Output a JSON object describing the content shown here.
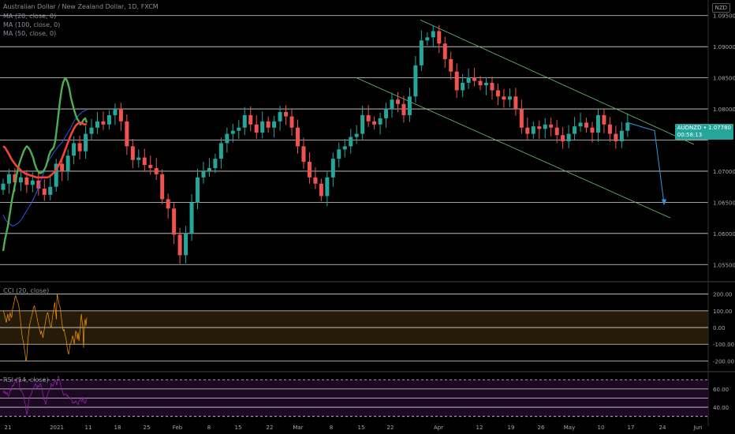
{
  "header": {
    "title": "Australian Dollar / New Zealand Dollar, 1D, FXCM",
    "ma_labels": [
      "MA (20, close, 0)",
      "MA (100, close, 0)",
      "MA (50, close, 0)"
    ],
    "currency": "NZD"
  },
  "price_badge": {
    "symbol_price": "AUDNZD • 1.07780",
    "countdown": "00:58:13"
  },
  "panes": {
    "cci_label": "CCI (20, close)",
    "rsi_label": "RSI (14, close)"
  },
  "colors": {
    "up": "#26a69a",
    "down": "#ef5350",
    "ma20": "#4caf50",
    "ma50": "#f44336",
    "ma100": "#2962ff",
    "cci": "#ff9800",
    "rsi": "#9c27b0",
    "grid": "#d9d9d9"
  },
  "chart_data": [
    {
      "type": "candlestick",
      "title": "Australian Dollar / New Zealand Dollar, 1D, FXCM",
      "y_ticks": [
        1.095,
        1.09,
        1.085,
        1.08,
        1.075,
        1.07,
        1.065,
        1.06,
        1.055
      ],
      "y_tick_labels": [
        "1.09500",
        "1.09000",
        "1.08500",
        "1.08000",
        "",
        "1.07000",
        "1.06500",
        "1.06000",
        "1.05500"
      ],
      "ylim": [
        1.0525,
        1.0975
      ],
      "x_tick_labels": [
        "21",
        "2021",
        "11",
        "18",
        "25",
        "Feb",
        "8",
        "15",
        "22",
        "Mar",
        "8",
        "15",
        "22",
        "Apr",
        "12",
        "19",
        "26",
        "May",
        "10",
        "17",
        "24",
        "Jun"
      ],
      "grid": true,
      "closes": [
        1.068,
        1.0695,
        1.0682,
        1.069,
        1.0678,
        1.0685,
        1.0672,
        1.0662,
        1.0675,
        1.0712,
        1.07,
        1.0725,
        1.0745,
        1.0732,
        1.076,
        1.077,
        1.078,
        1.0775,
        1.079,
        1.08,
        1.078,
        1.074,
        1.0718,
        1.0722,
        1.071,
        1.0705,
        1.0695,
        1.0655,
        1.064,
        1.0598,
        1.0565,
        1.06,
        1.065,
        1.069,
        1.07,
        1.0705,
        1.072,
        1.0745,
        1.076,
        1.0765,
        1.077,
        1.079,
        1.0775,
        1.0762,
        1.078,
        1.077,
        1.078,
        1.0795,
        1.0788,
        1.077,
        1.074,
        1.0715,
        1.069,
        1.068,
        1.066,
        1.069,
        1.072,
        1.0735,
        1.074,
        1.0755,
        1.076,
        1.079,
        1.078,
        1.0775,
        1.0785,
        1.08,
        1.0815,
        1.0808,
        1.079,
        1.082,
        1.087,
        1.091,
        1.0915,
        1.0925,
        1.0905,
        1.088,
        1.086,
        1.083,
        1.0842,
        1.085,
        1.0845,
        1.0838,
        1.0842,
        1.083,
        1.082,
        1.0815,
        1.082,
        1.08,
        1.077,
        1.076,
        1.0772,
        1.0768,
        1.0775,
        1.077,
        1.0758,
        1.0748,
        1.076,
        1.0772,
        1.0778,
        1.077,
        1.0762,
        1.079,
        1.0775,
        1.076,
        1.0748,
        1.0765,
        1.0778
      ],
      "series": [
        {
          "name": "MA (20, close, 0)",
          "values": [
            1.0572,
            1.0588,
            1.06,
            1.0612,
            1.0628,
            1.0645,
            1.066,
            1.0672,
            1.0685,
            1.07,
            1.071,
            1.0718,
            1.0725,
            1.0732,
            1.0737,
            1.074,
            1.0738,
            1.0734,
            1.0728,
            1.0722,
            1.0712,
            1.0705,
            1.07,
            1.0697,
            1.0697,
            1.0699,
            1.0702,
            1.0707,
            1.0715,
            1.0725,
            1.0732,
            1.0735,
            1.0738,
            1.0748,
            1.0768,
            1.079,
            1.0812,
            1.083,
            1.0842,
            1.0848,
            1.0848,
            1.0842,
            1.0832,
            1.0818,
            1.0808,
            1.0798,
            1.079,
            1.0784,
            1.078,
            1.0775,
            1.0778,
            1.0783,
            1.0785,
            1.0778
          ]
        },
        {
          "name": "MA (50, close, 0)",
          "values": [
            1.074,
            1.0738,
            1.0733,
            1.0728,
            1.0722,
            1.0717,
            1.0713,
            1.0709,
            1.0706,
            1.0703,
            1.07,
            1.0698,
            1.0696,
            1.0695,
            1.0694,
            1.0693,
            1.0692,
            1.0691,
            1.069,
            1.069,
            1.069,
            1.069,
            1.069,
            1.069,
            1.069,
            1.0692,
            1.0694,
            1.0697,
            1.0701,
            1.0705,
            1.071,
            1.0716,
            1.0723,
            1.0731,
            1.0739,
            1.0747,
            1.0755,
            1.0762,
            1.0768,
            1.0773,
            1.0776,
            1.0778,
            1.0778,
            1.0776,
            1.0775,
            1.0776
          ]
        },
        {
          "name": "MA (100, close, 0)",
          "values": [
            1.063,
            1.0622,
            1.0618,
            1.0615,
            1.0612,
            1.0613,
            1.0615,
            1.0618,
            1.0622,
            1.0628,
            1.0634,
            1.064,
            1.0646,
            1.0652,
            1.066,
            1.0668,
            1.0678,
            1.0688,
            1.0698,
            1.0708,
            1.0716,
            1.0722,
            1.0728,
            1.0733,
            1.0738,
            1.0742,
            1.0746,
            1.0752,
            1.0758,
            1.0764,
            1.077,
            1.0778,
            1.0784,
            1.0788,
            1.0792,
            1.0795,
            1.0797,
            1.0798
          ]
        }
      ]
    },
    {
      "type": "line",
      "title": "CCI (20, close)",
      "y_ticks": [
        200,
        100,
        0,
        -100,
        -200
      ],
      "y_tick_labels": [
        "200.00",
        "100.00",
        "0.00",
        "-100.00",
        "-200.00"
      ],
      "ylim": [
        -250,
        260
      ],
      "series": [
        {
          "name": "CCI (20, close)",
          "values": [
            100,
            90,
            70,
            50,
            30,
            60,
            80,
            50,
            40,
            90,
            70,
            60,
            110,
            130,
            150,
            180,
            190,
            170,
            160,
            150,
            130,
            90,
            50,
            0,
            -40,
            -70,
            -90,
            -120,
            -150,
            -200,
            -190,
            -120,
            -60,
            -20,
            20,
            40,
            60,
            80,
            100,
            120,
            130,
            110,
            90,
            70,
            40,
            20,
            0,
            -20,
            -40,
            -20,
            -40,
            -60,
            -30,
            0,
            30,
            60,
            80,
            90,
            70,
            40,
            20,
            0,
            10,
            60,
            90,
            120,
            150,
            100,
            50,
            200,
            180,
            160,
            130,
            120,
            80,
            40,
            0,
            -20,
            -10,
            -40,
            -60,
            -80,
            -120,
            -150,
            -160,
            -120,
            -100,
            -90,
            -70,
            -50,
            -70,
            -100,
            -60,
            -20,
            -40,
            -70,
            -30,
            -80,
            -40,
            20,
            80,
            40,
            0,
            -120,
            20,
            50,
            10,
            60
          ]
        }
      ]
    },
    {
      "type": "line",
      "title": "RSI (14, close)",
      "y_ticks": [
        70,
        60,
        50,
        40,
        30
      ],
      "y_tick_labels": [
        "",
        "60.00",
        "",
        "40.00",
        ""
      ],
      "ylim": [
        28,
        78
      ],
      "series": [
        {
          "name": "RSI (14, close)",
          "values": [
            56,
            58,
            55,
            57,
            54,
            56,
            53,
            52,
            55,
            60,
            58,
            62,
            64,
            63,
            66,
            68,
            70,
            69,
            71,
            72,
            70,
            62,
            58,
            59,
            56,
            55,
            53,
            47,
            44,
            37,
            32,
            36,
            44,
            50,
            52,
            53,
            55,
            59,
            61,
            62,
            63,
            66,
            63,
            61,
            64,
            62,
            63,
            66,
            65,
            61,
            56,
            52,
            48,
            46,
            43,
            48,
            53,
            56,
            57,
            60,
            61,
            66,
            64,
            63,
            65,
            68,
            70,
            68,
            64,
            69,
            74,
            72,
            68,
            64,
            60,
            58,
            55,
            53,
            54,
            55,
            54,
            52,
            53,
            51,
            50,
            49,
            51,
            48,
            45,
            44,
            46,
            45,
            47,
            46,
            44,
            43,
            46,
            48,
            49,
            47,
            46,
            51,
            48,
            45,
            44,
            47,
            49
          ]
        }
      ]
    }
  ]
}
